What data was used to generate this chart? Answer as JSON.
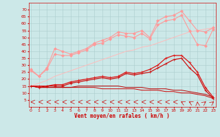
{
  "xlabel": "Vent moyen/en rafales ( km/h )",
  "background_color": "#cce8e8",
  "grid_color": "#aacccc",
  "x": [
    0,
    1,
    2,
    3,
    4,
    5,
    6,
    7,
    8,
    9,
    10,
    11,
    12,
    13,
    14,
    15,
    16,
    17,
    18,
    19,
    20,
    21,
    22,
    23
  ],
  "lines": [
    {
      "y": [
        27,
        22,
        28,
        42,
        40,
        38,
        40,
        42,
        46,
        48,
        50,
        54,
        53,
        53,
        55,
        50,
        62,
        65,
        66,
        69,
        62,
        55,
        54,
        57
      ],
      "color": "#ff9999",
      "marker": "D",
      "markersize": 2,
      "linewidth": 0.8
    },
    {
      "y": [
        26,
        22,
        27,
        38,
        37,
        37,
        39,
        41,
        45,
        46,
        49,
        52,
        51,
        50,
        53,
        49,
        59,
        62,
        63,
        66,
        55,
        45,
        44,
        56
      ],
      "color": "#ff9999",
      "marker": "D",
      "markersize": 2,
      "linewidth": 0.8
    },
    {
      "y": [
        15,
        17,
        19,
        22,
        24,
        26,
        28,
        30,
        32,
        34,
        36,
        38,
        40,
        41,
        43,
        44,
        46,
        48,
        50,
        52,
        54,
        55,
        56,
        57
      ],
      "color": "#ffbbbb",
      "marker": null,
      "linewidth": 0.7
    },
    {
      "y": [
        15,
        15,
        15,
        16,
        16,
        18,
        19,
        20,
        21,
        22,
        21,
        22,
        25,
        24,
        25,
        27,
        30,
        35,
        37,
        37,
        32,
        25,
        14,
        7
      ],
      "color": "#dd1111",
      "marker": "+",
      "markersize": 3,
      "linewidth": 0.9
    },
    {
      "y": [
        15,
        14,
        15,
        15,
        15,
        17,
        18,
        19,
        20,
        21,
        20,
        21,
        24,
        23,
        24,
        25,
        28,
        31,
        34,
        35,
        28,
        23,
        12,
        6
      ],
      "color": "#cc1111",
      "marker": "+",
      "markersize": 3,
      "linewidth": 0.9
    },
    {
      "y": [
        15,
        14,
        14,
        14,
        14,
        14,
        14,
        14,
        14,
        13,
        13,
        13,
        13,
        13,
        12,
        12,
        12,
        11,
        11,
        10,
        10,
        9,
        8,
        6
      ],
      "color": "#cc0000",
      "marker": null,
      "linewidth": 0.7
    },
    {
      "y": [
        15,
        14,
        14,
        14,
        14,
        14,
        15,
        15,
        15,
        15,
        15,
        15,
        14,
        14,
        14,
        13,
        13,
        13,
        12,
        12,
        11,
        10,
        9,
        7
      ],
      "color": "#bb0000",
      "marker": null,
      "linewidth": 0.7
    }
  ],
  "ylim": [
    0,
    75
  ],
  "yticks": [
    5,
    10,
    15,
    20,
    25,
    30,
    35,
    40,
    45,
    50,
    55,
    60,
    65,
    70
  ],
  "xlim": [
    -0.3,
    23.3
  ]
}
